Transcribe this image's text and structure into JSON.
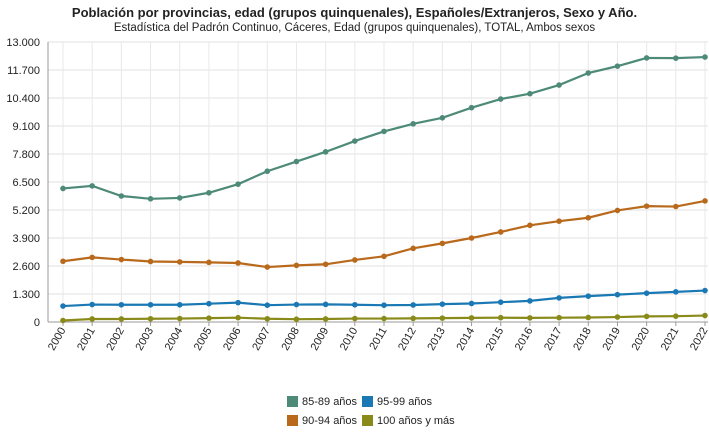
{
  "chart_data": {
    "type": "line",
    "title": "Población por provincias, edad (grupos quinquenales), Españoles/Extranjeros, Sexo y Año.",
    "subtitle": "Estadística del Padrón Continuo, Cáceres, Edad (grupos quinquenales), TOTAL, Ambos sexos",
    "x": [
      "2000",
      "2001",
      "2002",
      "2003",
      "2004",
      "2005",
      "2006",
      "2007",
      "2008",
      "2009",
      "2010",
      "2011",
      "2012",
      "2013",
      "2014",
      "2015",
      "2016",
      "2017",
      "2018",
      "2019",
      "2020",
      "2021",
      "2022"
    ],
    "ylim": [
      0,
      13000
    ],
    "yticks": [
      "0",
      "1.300",
      "2.600",
      "3.900",
      "5.200",
      "6.500",
      "7.800",
      "9.100",
      "10.400",
      "11.700",
      "13.000"
    ],
    "grid": true,
    "legend_position": "bottom",
    "series": [
      {
        "name": "85-89 años",
        "color": "#4e8a78",
        "values": [
          6200,
          6320,
          5850,
          5720,
          5760,
          6000,
          6400,
          7000,
          7450,
          7900,
          8400,
          8850,
          9200,
          9480,
          9950,
          10350,
          10600,
          11000,
          11560,
          11880,
          12260,
          12250,
          12300
        ]
      },
      {
        "name": "95-99 años",
        "color": "#1a78b4",
        "values": [
          740,
          810,
          800,
          800,
          800,
          850,
          900,
          780,
          810,
          820,
          800,
          780,
          790,
          830,
          860,
          920,
          980,
          1120,
          1200,
          1270,
          1340,
          1400,
          1460
        ]
      },
      {
        "name": "90-94 años",
        "color": "#b9691b",
        "values": [
          2820,
          3000,
          2900,
          2810,
          2790,
          2770,
          2740,
          2550,
          2630,
          2680,
          2880,
          3050,
          3420,
          3650,
          3900,
          4180,
          4490,
          4680,
          4840,
          5180,
          5380,
          5360,
          5620
        ]
      },
      {
        "name": "100 años y más",
        "color": "#8a8a1a",
        "values": [
          70,
          140,
          140,
          150,
          160,
          180,
          200,
          150,
          130,
          140,
          160,
          160,
          170,
          180,
          190,
          200,
          190,
          200,
          210,
          230,
          260,
          270,
          300
        ]
      }
    ]
  }
}
